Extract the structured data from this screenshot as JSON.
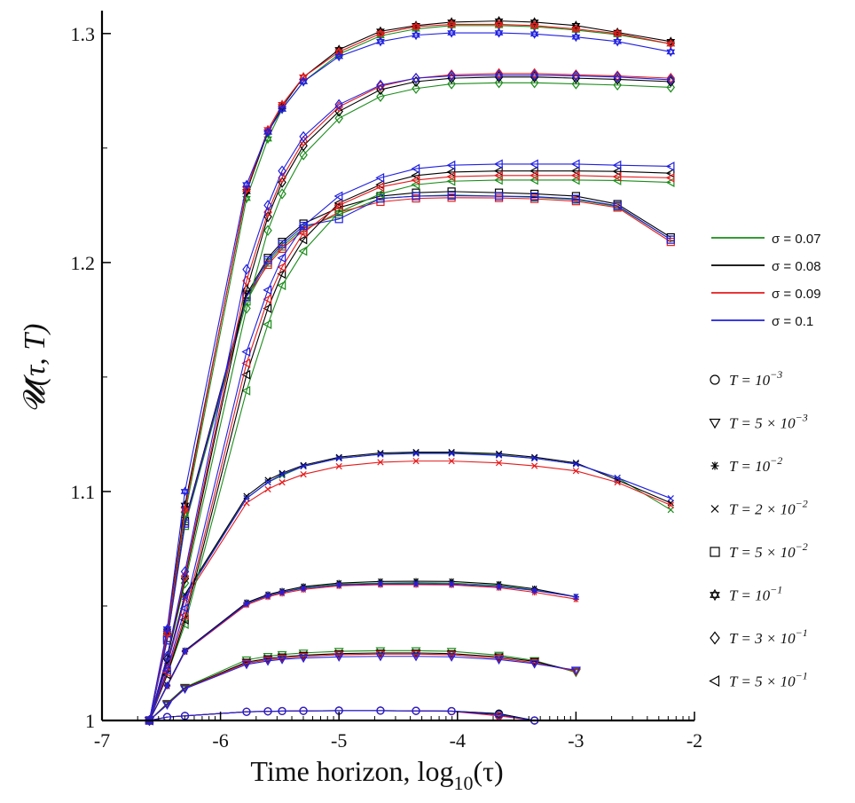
{
  "chart_data": {
    "type": "line",
    "xlabel_text": "Time horizon, ",
    "xlabel_math": "log",
    "xlabel_sub": "10",
    "xlabel_arg": "(τ)",
    "ylabel_text": "𝓤(τ, T)",
    "xlim": [
      -7,
      -2
    ],
    "ylim": [
      1.0,
      1.31
    ],
    "x_ticks": [
      -7,
      -6,
      -5,
      -4,
      -3,
      -2
    ],
    "x_tick_labels": [
      "-7",
      "-6",
      "-5",
      "-4",
      "-3",
      "-2"
    ],
    "y_ticks": [
      1.0,
      1.1,
      1.2,
      1.3
    ],
    "y_tick_labels": [
      "1",
      "1.1",
      "1.2",
      "1.3"
    ],
    "grid": false,
    "legend_placement": "right",
    "sigma_legend": [
      {
        "label": "σ = 0.07",
        "color": "#1a8c1a"
      },
      {
        "label": "σ = 0.08",
        "color": "#000000"
      },
      {
        "label": "σ = 0.09",
        "color": "#e41a1c"
      },
      {
        "label": "σ = 0.1",
        "color": "#1f1fe0"
      }
    ],
    "marker_legend": [
      {
        "marker": "circle",
        "label_pre": "T = 10",
        "sup": "−3"
      },
      {
        "marker": "triangle-down",
        "label_pre": "T = 5 × 10",
        "sup": "−3"
      },
      {
        "marker": "asterisk",
        "label_pre": "T = 10",
        "sup": "−2"
      },
      {
        "marker": "x",
        "label_pre": "T = 2 × 10",
        "sup": "−2"
      },
      {
        "marker": "square",
        "label_pre": "T = 5 × 10",
        "sup": "−2"
      },
      {
        "marker": "hexagram",
        "label_pre": "T = 10",
        "sup": "−1"
      },
      {
        "marker": "diamond",
        "label_pre": "T = 3 × 10",
        "sup": "−1"
      },
      {
        "marker": "triangle-left",
        "label_pre": "T = 5 × 10",
        "sup": "−1"
      }
    ],
    "x": [
      -6.6,
      -6.45,
      -6.3,
      -5.78,
      -5.6,
      -5.48,
      -5.3,
      -5.0,
      -4.65,
      -4.35,
      -4.05,
      -3.65,
      -3.35,
      -3.0,
      -2.65,
      -2.2
    ],
    "series": [
      {
        "marker": "circle",
        "color": "#1a8c1a",
        "values": [
          1.0,
          1.0015,
          1.002,
          1.0038,
          1.004,
          1.0041,
          1.0042,
          1.0043,
          1.0043,
          1.0042,
          1.0041,
          1.003,
          1.0,
          null,
          null,
          null
        ]
      },
      {
        "marker": "circle",
        "color": "#000000",
        "values": [
          1.0,
          1.0015,
          1.002,
          1.0038,
          1.004,
          1.0041,
          1.0042,
          1.0043,
          1.0043,
          1.0042,
          1.0041,
          1.003,
          1.0,
          null,
          null,
          null
        ]
      },
      {
        "marker": "circle",
        "color": "#e41a1c",
        "values": [
          1.0,
          1.0015,
          1.002,
          1.0038,
          1.004,
          1.0041,
          1.0042,
          1.0043,
          1.0043,
          1.0042,
          1.004,
          1.002,
          1.0,
          null,
          null,
          null
        ]
      },
      {
        "marker": "circle",
        "color": "#1f1fe0",
        "values": [
          1.0,
          1.0015,
          1.002,
          1.0038,
          1.004,
          1.0041,
          1.0042,
          1.0043,
          1.0043,
          1.0042,
          1.0041,
          1.0025,
          1.0,
          null,
          null,
          null
        ]
      },
      {
        "marker": "triangle-down",
        "color": "#1a8c1a",
        "values": [
          1.0,
          1.0075,
          1.0145,
          1.0265,
          1.028,
          1.0288,
          1.0295,
          1.0302,
          1.0305,
          1.0305,
          1.0302,
          1.0285,
          1.0262,
          1.021,
          null,
          null
        ]
      },
      {
        "marker": "triangle-down",
        "color": "#000000",
        "values": [
          1.0,
          1.0072,
          1.0142,
          1.0255,
          1.027,
          1.0278,
          1.0285,
          1.0292,
          1.0295,
          1.0295,
          1.0292,
          1.0278,
          1.0258,
          1.0215,
          null,
          null
        ]
      },
      {
        "marker": "triangle-down",
        "color": "#e41a1c",
        "values": [
          1.0,
          1.007,
          1.014,
          1.025,
          1.0265,
          1.0272,
          1.028,
          1.0287,
          1.029,
          1.029,
          1.0287,
          1.0272,
          1.0252,
          1.0215,
          null,
          null
        ]
      },
      {
        "marker": "triangle-down",
        "color": "#1f1fe0",
        "values": [
          1.0,
          1.0068,
          1.0138,
          1.0245,
          1.026,
          1.0267,
          1.0273,
          1.0278,
          1.028,
          1.028,
          1.0278,
          1.0266,
          1.0248,
          1.022,
          null,
          null
        ]
      },
      {
        "marker": "asterisk",
        "color": "#1a8c1a",
        "values": [
          1.0,
          1.015,
          1.03,
          1.051,
          1.0545,
          1.056,
          1.058,
          1.0595,
          1.06,
          1.0602,
          1.06,
          1.059,
          1.057,
          1.054,
          null,
          null
        ]
      },
      {
        "marker": "asterisk",
        "color": "#000000",
        "values": [
          1.0,
          1.0155,
          1.0305,
          1.0515,
          1.055,
          1.0565,
          1.0585,
          1.06,
          1.0607,
          1.0608,
          1.0607,
          1.0595,
          1.0575,
          1.054,
          null,
          null
        ]
      },
      {
        "marker": "asterisk",
        "color": "#e41a1c",
        "values": [
          1.0,
          1.015,
          1.03,
          1.0505,
          1.054,
          1.0555,
          1.0572,
          1.0588,
          1.0593,
          1.0593,
          1.0592,
          1.058,
          1.056,
          1.053,
          null,
          null
        ]
      },
      {
        "marker": "asterisk",
        "color": "#1f1fe0",
        "values": [
          1.0,
          1.0152,
          1.0302,
          1.051,
          1.0545,
          1.056,
          1.0577,
          1.0592,
          1.0597,
          1.0597,
          1.0596,
          1.0585,
          1.0568,
          1.054,
          null,
          null
        ]
      },
      {
        "marker": "x",
        "color": "#1a8c1a",
        "values": [
          1.0,
          1.025,
          1.055,
          1.097,
          1.104,
          1.107,
          1.111,
          1.1145,
          1.1163,
          1.1168,
          1.1168,
          1.116,
          1.1145,
          1.112,
          1.106,
          1.092
        ]
      },
      {
        "marker": "x",
        "color": "#000000",
        "values": [
          1.0,
          1.025,
          1.055,
          1.098,
          1.105,
          1.108,
          1.1115,
          1.115,
          1.1168,
          1.1172,
          1.1172,
          1.1165,
          1.115,
          1.1125,
          1.105,
          1.095
        ]
      },
      {
        "marker": "x",
        "color": "#e41a1c",
        "values": [
          1.0,
          1.024,
          1.053,
          1.095,
          1.101,
          1.104,
          1.1075,
          1.111,
          1.1128,
          1.1133,
          1.1133,
          1.1125,
          1.1112,
          1.109,
          1.104,
          1.094
        ]
      },
      {
        "marker": "x",
        "color": "#1f1fe0",
        "values": [
          1.0,
          1.025,
          1.054,
          1.097,
          1.104,
          1.1075,
          1.111,
          1.1145,
          1.1162,
          1.1166,
          1.1166,
          1.1158,
          1.1145,
          1.112,
          1.106,
          1.097
        ]
      },
      {
        "marker": "square",
        "color": "#1a8c1a",
        "values": [
          1.0,
          1.035,
          1.085,
          1.183,
          1.2,
          1.207,
          1.215,
          1.221,
          1.228,
          1.229,
          1.2295,
          1.229,
          1.2285,
          1.2275,
          1.2245,
          1.21
        ]
      },
      {
        "marker": "square",
        "color": "#000000",
        "values": [
          1.0,
          1.036,
          1.087,
          1.186,
          1.202,
          1.209,
          1.217,
          1.224,
          1.229,
          1.2305,
          1.231,
          1.2305,
          1.23,
          1.229,
          1.2255,
          1.211
        ]
      },
      {
        "marker": "square",
        "color": "#e41a1c",
        "values": [
          1.0,
          1.035,
          1.086,
          1.185,
          1.199,
          1.206,
          1.214,
          1.222,
          1.2265,
          1.228,
          1.2283,
          1.2282,
          1.2278,
          1.2268,
          1.224,
          1.209
        ]
      },
      {
        "marker": "square",
        "color": "#1f1fe0",
        "values": [
          1.0,
          1.035,
          1.086,
          1.185,
          1.201,
          1.208,
          1.216,
          1.219,
          1.228,
          1.229,
          1.2292,
          1.229,
          1.2288,
          1.2278,
          1.2248,
          1.21
        ]
      },
      {
        "marker": "hexagram",
        "color": "#1a8c1a",
        "values": [
          1.0,
          1.038,
          1.09,
          1.228,
          1.254,
          1.267,
          1.279,
          1.291,
          1.299,
          1.302,
          1.3035,
          1.3035,
          1.303,
          1.3015,
          1.2995,
          1.2955
        ]
      },
      {
        "marker": "hexagram",
        "color": "#000000",
        "values": [
          1.0,
          1.039,
          1.094,
          1.231,
          1.257,
          1.268,
          1.281,
          1.293,
          1.301,
          1.3035,
          1.305,
          1.3055,
          1.305,
          1.3035,
          1.3005,
          1.2965
        ]
      },
      {
        "marker": "hexagram",
        "color": "#e41a1c",
        "values": [
          1.0,
          1.038,
          1.092,
          1.232,
          1.258,
          1.269,
          1.281,
          1.292,
          1.3,
          1.303,
          1.304,
          1.304,
          1.3035,
          1.302,
          1.3,
          1.2955
        ]
      },
      {
        "marker": "hexagram",
        "color": "#1f1fe0",
        "values": [
          1.0,
          1.04,
          1.1,
          1.234,
          1.257,
          1.267,
          1.279,
          1.29,
          1.2965,
          1.2993,
          1.3003,
          1.3003,
          1.2998,
          1.2985,
          1.2965,
          1.292
        ]
      },
      {
        "marker": "diamond",
        "color": "#1a8c1a",
        "values": [
          1.0,
          1.027,
          1.06,
          1.18,
          1.214,
          1.23,
          1.247,
          1.263,
          1.2725,
          1.276,
          1.278,
          1.2785,
          1.2785,
          1.278,
          1.2775,
          1.2765
        ]
      },
      {
        "marker": "diamond",
        "color": "#000000",
        "values": [
          1.0,
          1.027,
          1.062,
          1.188,
          1.22,
          1.235,
          1.251,
          1.266,
          1.2755,
          1.279,
          1.2805,
          1.281,
          1.281,
          1.2805,
          1.28,
          1.279
        ]
      },
      {
        "marker": "diamond",
        "color": "#e41a1c",
        "values": [
          1.0,
          1.028,
          1.063,
          1.192,
          1.222,
          1.237,
          1.253,
          1.268,
          1.277,
          1.2805,
          1.282,
          1.2825,
          1.2825,
          1.282,
          1.2815,
          1.2805
        ]
      },
      {
        "marker": "diamond",
        "color": "#1f1fe0",
        "values": [
          1.0,
          1.028,
          1.065,
          1.197,
          1.225,
          1.24,
          1.255,
          1.269,
          1.2775,
          1.2805,
          1.2815,
          1.2818,
          1.2818,
          1.2815,
          1.281,
          1.2798
        ]
      },
      {
        "marker": "triangle-left",
        "color": "#1a8c1a",
        "values": [
          1.0,
          1.02,
          1.042,
          1.144,
          1.173,
          1.19,
          1.205,
          1.222,
          1.23,
          1.234,
          1.2355,
          1.236,
          1.236,
          1.236,
          1.2358,
          1.235
        ]
      },
      {
        "marker": "triangle-left",
        "color": "#000000",
        "values": [
          1.0,
          1.02,
          1.044,
          1.151,
          1.18,
          1.195,
          1.21,
          1.226,
          1.234,
          1.238,
          1.2395,
          1.24,
          1.24,
          1.24,
          1.2398,
          1.239
        ]
      },
      {
        "marker": "triangle-left",
        "color": "#e41a1c",
        "values": [
          1.0,
          1.021,
          1.046,
          1.156,
          1.184,
          1.198,
          1.213,
          1.225,
          1.233,
          1.236,
          1.2375,
          1.238,
          1.238,
          1.238,
          1.2375,
          1.237
        ]
      },
      {
        "marker": "triangle-left",
        "color": "#1f1fe0",
        "values": [
          1.0,
          1.022,
          1.049,
          1.161,
          1.188,
          1.202,
          1.216,
          1.229,
          1.237,
          1.241,
          1.2425,
          1.243,
          1.243,
          1.243,
          1.2425,
          1.242
        ]
      }
    ]
  }
}
